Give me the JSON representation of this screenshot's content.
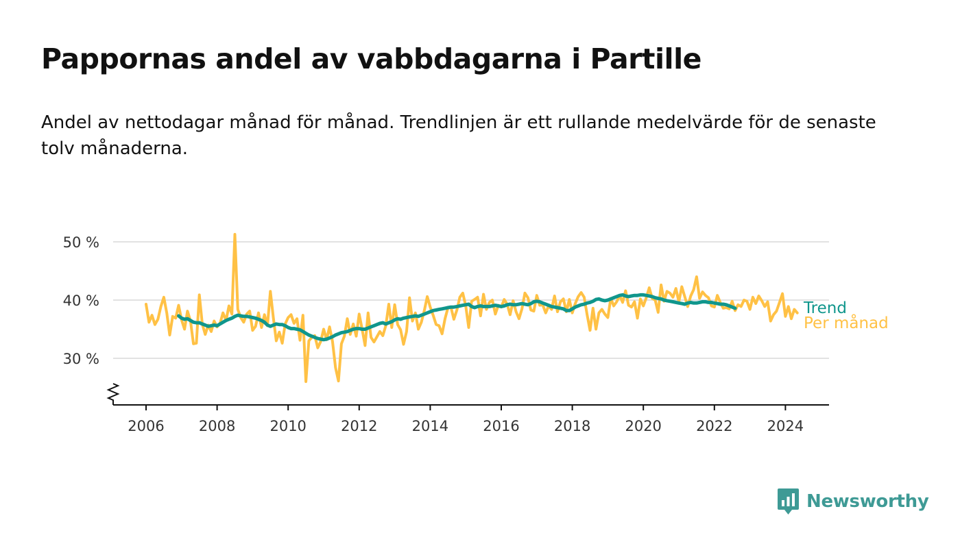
{
  "header": {
    "title": "Pappornas andel av vabbdagarna i Partille",
    "subtitle": "Andel av nettodagar månad för månad. Trendlinjen är ett rullande medelvärde för de senaste tolv månaderna."
  },
  "brand": {
    "name": "Newsworthy",
    "color": "#3e9a95"
  },
  "chart_data": {
    "type": "line",
    "title": "Pappornas andel av vabbdagarna i Partille",
    "subtitle": "Andel av nettodagar månad för månad. Trendlinjen är ett rullande medelvärde för de senaste tolv månaderna.",
    "xlabel": "",
    "ylabel": "",
    "x_ticks": [
      "2006",
      "2008",
      "2010",
      "2012",
      "2014",
      "2016",
      "2018",
      "2020",
      "2022",
      "2024"
    ],
    "y_ticks": [
      "30 %",
      "40 %",
      "50 %"
    ],
    "y_tick_values": [
      30,
      40,
      50
    ],
    "xlim": [
      2005.1,
      2025.2
    ],
    "ylim": [
      22,
      52
    ],
    "y_axis_break": true,
    "grid": "horizontal",
    "legend": "direct labels at right end of lines",
    "series": [
      {
        "name": "Per månad",
        "color": "#ffc145",
        "x_start": "2006-01",
        "x_step": "1 month",
        "values": [
          39.3,
          36.2,
          37.4,
          35.8,
          36.7,
          38.9,
          40.5,
          37.8,
          34.0,
          37.2,
          36.9,
          39.1,
          36.6,
          35.0,
          38.1,
          36.4,
          32.5,
          32.6,
          40.9,
          35.9,
          34.1,
          35.7,
          34.6,
          36.4,
          35.4,
          36.0,
          37.8,
          36.5,
          39.0,
          37.6,
          51.3,
          38.4,
          37.0,
          36.2,
          37.6,
          38.1,
          34.8,
          35.5,
          37.8,
          35.3,
          37.5,
          35.6,
          41.5,
          37.0,
          33.0,
          34.5,
          32.6,
          35.9,
          37.0,
          37.5,
          36.0,
          36.8,
          33.1,
          37.4,
          26.0,
          33.0,
          33.6,
          33.9,
          31.8,
          32.9,
          35.0,
          33.2,
          35.4,
          32.9,
          28.4,
          26.1,
          32.5,
          33.8,
          36.8,
          34.1,
          35.9,
          33.8,
          37.6,
          35.0,
          32.2,
          37.8,
          33.6,
          32.8,
          33.7,
          34.6,
          33.9,
          35.6,
          39.3,
          35.3,
          39.2,
          35.8,
          34.9,
          32.4,
          34.6,
          40.4,
          36.4,
          37.8,
          35.0,
          36.2,
          38.2,
          40.6,
          38.8,
          37.4,
          35.8,
          35.6,
          34.2,
          36.8,
          38.7,
          38.8,
          36.7,
          38.3,
          40.5,
          41.2,
          39.0,
          35.3,
          39.8,
          40.1,
          40.5,
          37.3,
          41.0,
          38.4,
          39.6,
          40.0,
          37.6,
          39.1,
          38.8,
          40.1,
          39.3,
          37.5,
          39.9,
          38.0,
          36.8,
          38.5,
          41.2,
          40.4,
          38.3,
          38.1,
          40.8,
          39.1,
          39.2,
          37.8,
          39.0,
          38.4,
          40.7,
          38.0,
          39.7,
          40.2,
          38.0,
          40.1,
          37.8,
          39.4,
          40.6,
          41.3,
          40.5,
          37.5,
          34.8,
          38.6,
          35.0,
          37.8,
          38.4,
          37.6,
          37.0,
          40.3,
          39.0,
          39.7,
          40.8,
          39.6,
          41.6,
          39.1,
          38.8,
          39.7,
          36.9,
          40.2,
          39.0,
          40.4,
          42.1,
          40.3,
          40.0,
          37.9,
          42.6,
          39.8,
          41.5,
          41.2,
          40.5,
          42.0,
          39.7,
          42.3,
          40.6,
          38.9,
          40.7,
          41.8,
          44.0,
          40.3,
          41.4,
          40.8,
          40.4,
          39.0,
          38.8,
          40.8,
          39.6,
          38.6,
          38.7,
          38.5,
          39.8,
          38.2,
          39.2,
          38.9,
          40.0,
          39.8,
          38.4,
          40.5,
          39.4,
          40.7,
          39.9,
          38.9,
          39.7,
          36.4,
          37.5,
          38.1,
          39.6,
          41.1,
          37.2,
          38.9,
          36.8,
          38.4,
          37.8
        ]
      },
      {
        "name": "Trend",
        "color": "#10968c",
        "x_start": "2006-12",
        "x_step": "1 month",
        "values": [
          37.3,
          36.9,
          36.7,
          36.8,
          36.5,
          36.2,
          36.1,
          36.1,
          35.9,
          35.7,
          35.5,
          35.6,
          35.7,
          35.6,
          35.9,
          36.2,
          36.5,
          36.7,
          36.9,
          37.2,
          37.4,
          37.3,
          37.2,
          37.2,
          37.1,
          37.0,
          36.9,
          36.7,
          36.5,
          36.2,
          35.7,
          35.5,
          35.7,
          35.9,
          35.8,
          35.8,
          35.6,
          35.3,
          35.1,
          35.1,
          35.0,
          34.9,
          34.6,
          34.3,
          34.0,
          33.8,
          33.6,
          33.4,
          33.3,
          33.2,
          33.3,
          33.5,
          33.7,
          34.0,
          34.2,
          34.4,
          34.5,
          34.6,
          34.8,
          35.0,
          35.1,
          35.1,
          35.0,
          35.0,
          35.2,
          35.4,
          35.6,
          35.8,
          36.0,
          36.1,
          35.9,
          36.1,
          36.3,
          36.6,
          36.8,
          36.7,
          36.9,
          37.0,
          37.1,
          37.2,
          37.3,
          37.2,
          37.4,
          37.6,
          37.8,
          38.0,
          38.2,
          38.3,
          38.4,
          38.5,
          38.6,
          38.7,
          38.8,
          38.8,
          38.9,
          39.0,
          39.1,
          39.2,
          39.3,
          38.9,
          38.7,
          38.9,
          39.0,
          38.9,
          38.9,
          38.9,
          39.0,
          39.1,
          39.0,
          38.9,
          39.0,
          39.2,
          39.3,
          39.2,
          39.2,
          39.3,
          39.4,
          39.3,
          39.2,
          39.4,
          39.7,
          39.8,
          39.7,
          39.5,
          39.3,
          39.1,
          38.9,
          38.8,
          38.7,
          38.6,
          38.5,
          38.2,
          38.2,
          38.5,
          38.8,
          39.0,
          39.2,
          39.3,
          39.5,
          39.6,
          39.8,
          40.1,
          40.2,
          40.0,
          39.9,
          40.0,
          40.2,
          40.4,
          40.6,
          40.8,
          40.9,
          40.7,
          40.6,
          40.7,
          40.8,
          40.8,
          40.9,
          40.9,
          40.8,
          40.7,
          40.6,
          40.4,
          40.3,
          40.2,
          40.0,
          39.9,
          39.8,
          39.7,
          39.6,
          39.5,
          39.4,
          39.3,
          39.5,
          39.6,
          39.5,
          39.5,
          39.6,
          39.7,
          39.7,
          39.6,
          39.6,
          39.5,
          39.4,
          39.3,
          39.3,
          39.2,
          39.0,
          38.8,
          38.6
        ]
      }
    ]
  }
}
